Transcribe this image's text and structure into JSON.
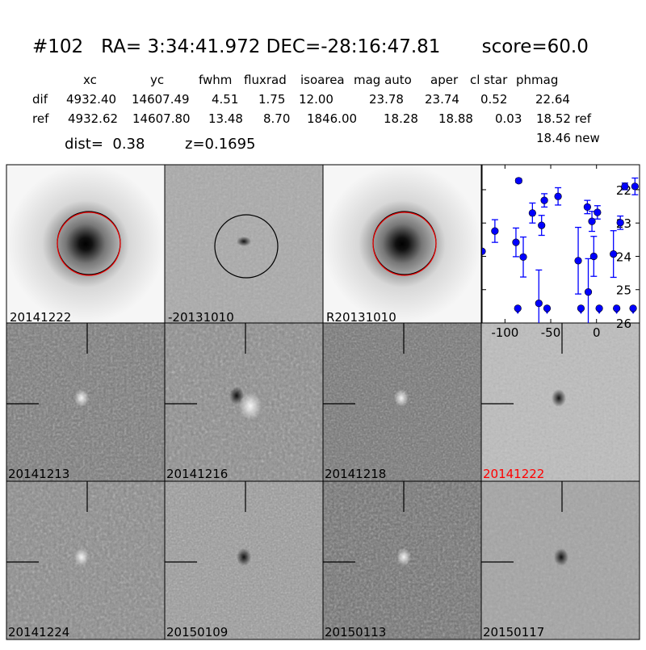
{
  "header": {
    "title": "#102   RA= 3:34:41.972 DEC=-28:16:47.81       score=60.0",
    "columns": [
      "xc",
      "yc",
      "fwhm",
      "fluxrad",
      "isoarea",
      "mag auto",
      "aper",
      "cl star",
      "phmag"
    ],
    "rows": [
      {
        "label": "dif",
        "values": [
          "4932.40",
          "14607.49",
          "4.51",
          "1.75",
          "12.00",
          "23.78",
          "23.74",
          "0.52",
          "22.64"
        ]
      },
      {
        "label": "ref",
        "values": [
          "4932.62",
          "14607.80",
          "13.48",
          "8.70",
          "1846.00",
          "18.28",
          "18.88",
          "0.03",
          "18.52 ref"
        ]
      }
    ],
    "new_mag": "18.46 new",
    "dist": "dist=  0.38",
    "z": "z=0.1695"
  },
  "stamps": [
    {
      "label": "20141222",
      "label_color": "#000000"
    },
    {
      "label": "-20131010",
      "label_color": "#000000"
    },
    {
      "label": "R20131010",
      "label_color": "#000000"
    },
    {
      "label": "20141213",
      "label_color": "#000000"
    },
    {
      "label": "20141216",
      "label_color": "#000000"
    },
    {
      "label": "20141218",
      "label_color": "#000000"
    },
    {
      "label": "20141222",
      "label_color": "#ff0000"
    },
    {
      "label": "20141224",
      "label_color": "#000000"
    },
    {
      "label": "20150109",
      "label_color": "#000000"
    },
    {
      "label": "20150113",
      "label_color": "#000000"
    },
    {
      "label": "20150117",
      "label_color": "#000000"
    }
  ],
  "chart_data": {
    "type": "scatter",
    "xlim": [
      -125,
      47
    ],
    "ylim": [
      26,
      21.25
    ],
    "y_inverted": true,
    "xticks": [
      -100,
      -50,
      0
    ],
    "yticks": [
      22,
      23,
      24,
      25,
      26
    ],
    "color": "#0000ff",
    "points": [
      {
        "x": -125,
        "y": 23.85,
        "err": 0
      },
      {
        "x": -111,
        "y": 23.24,
        "err": 0.34
      },
      {
        "x": -88,
        "y": 23.58,
        "err": 0.43
      },
      {
        "x": -85,
        "y": 21.73,
        "err": 0.06
      },
      {
        "x": -80,
        "y": 24.02,
        "err": 0.6
      },
      {
        "x": -70,
        "y": 22.7,
        "err": 0.3
      },
      {
        "x": -63,
        "y": 25.41,
        "err": 1.0
      },
      {
        "x": -60,
        "y": 23.07,
        "err": 0.3
      },
      {
        "x": -57,
        "y": 22.32,
        "err": 0.2
      },
      {
        "x": -42,
        "y": 22.2,
        "err": 0.26
      },
      {
        "x": -20,
        "y": 24.13,
        "err": 1.0
      },
      {
        "x": -10,
        "y": 22.52,
        "err": 0.2
      },
      {
        "x": -9,
        "y": 25.07,
        "err": 1.0
      },
      {
        "x": -5,
        "y": 22.95,
        "err": 0.3
      },
      {
        "x": -3,
        "y": 24.0,
        "err": 0.6
      },
      {
        "x": 1,
        "y": 22.68,
        "err": 0.2
      },
      {
        "x": 18.5,
        "y": 23.93,
        "err": 0.7
      },
      {
        "x": 26,
        "y": 22.99,
        "err": 0.2
      },
      {
        "x": 31,
        "y": 21.9,
        "err": 0.1
      },
      {
        "x": 42,
        "y": 21.9,
        "err": 0.25
      }
    ],
    "upper_limits": [
      {
        "x": -86,
        "y": 25.56
      },
      {
        "x": -54,
        "y": 25.56
      },
      {
        "x": -17,
        "y": 25.56
      },
      {
        "x": 3,
        "y": 25.56
      },
      {
        "x": 22,
        "y": 25.56
      },
      {
        "x": 40,
        "y": 25.56
      }
    ]
  }
}
